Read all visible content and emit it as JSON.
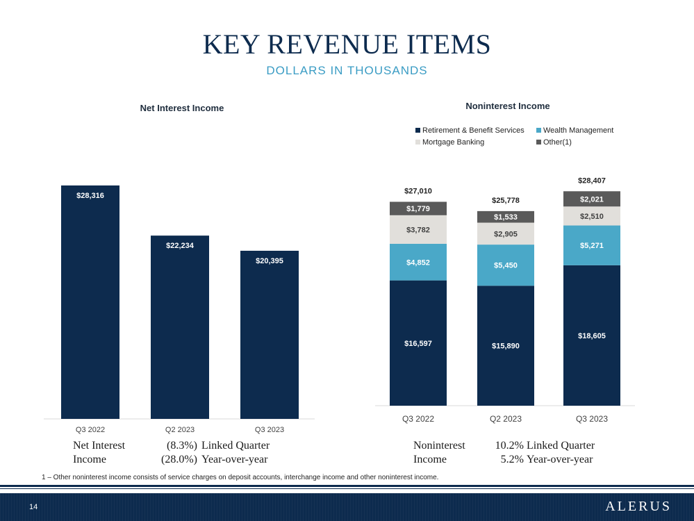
{
  "header": {
    "title": "KEY REVENUE ITEMS",
    "subtitle": "DOLLARS IN THOUSANDS"
  },
  "colors": {
    "navy": "#0d2b4e",
    "wealth": "#4aa8c8",
    "mortgage": "#e1dfdb",
    "other": "#5a5a5a",
    "accent": "#3a9cc4"
  },
  "chart_data": [
    {
      "type": "bar",
      "title": "Net Interest Income",
      "categories": [
        "Q3 2022",
        "Q2 2023",
        "Q3 2023"
      ],
      "values": [
        28316,
        22234,
        20395
      ],
      "value_labels": [
        "$28,316",
        "$22,234",
        "$20,395"
      ],
      "ylim": [
        0,
        30000
      ],
      "legend": "none",
      "grid": false
    },
    {
      "type": "bar",
      "stacked": true,
      "title": "Noninterest Income",
      "categories": [
        "Q3 2022",
        "Q2 2023",
        "Q3 2023"
      ],
      "series": [
        {
          "name": "Retirement & Benefit Services",
          "values": [
            16597,
            15890,
            18605
          ],
          "labels": [
            "$16,597",
            "$15,890",
            "$18,605"
          ]
        },
        {
          "name": "Wealth Management",
          "values": [
            4852,
            5450,
            5271
          ],
          "labels": [
            "$4,852",
            "$5,450",
            "$5,271"
          ]
        },
        {
          "name": "Mortgage Banking",
          "values": [
            3782,
            2905,
            2510
          ],
          "labels": [
            "$3,782",
            "$2,905",
            "$2,510"
          ]
        },
        {
          "name": "Other(1)",
          "values": [
            1779,
            1533,
            2021
          ],
          "labels": [
            "$1,779",
            "$1,533",
            "$2,021"
          ]
        }
      ],
      "totals": [
        27010,
        25778,
        28407
      ],
      "total_labels": [
        "$27,010",
        "$25,778",
        "$28,407"
      ],
      "ylim": [
        0,
        30000
      ],
      "legend": "top",
      "grid": false
    }
  ],
  "stats": {
    "nii": {
      "label_line1": "Net Interest",
      "label_line2": "Income",
      "linked_value": "(8.3%)",
      "linked_text": "Linked Quarter",
      "yoy_value": "(28.0%)",
      "yoy_text": "Year-over-year"
    },
    "nonii": {
      "label_line1": "Noninterest",
      "label_line2": "Income",
      "linked_value": "10.2%",
      "linked_text": "Linked Quarter",
      "yoy_value": "5.2%",
      "yoy_text": "Year-over-year"
    }
  },
  "footnote": "1 – Other noninterest income consists of service charges on deposit accounts, interchange income and other noninterest income.",
  "footer": {
    "page_number": "14",
    "logo": "ALERUS"
  }
}
